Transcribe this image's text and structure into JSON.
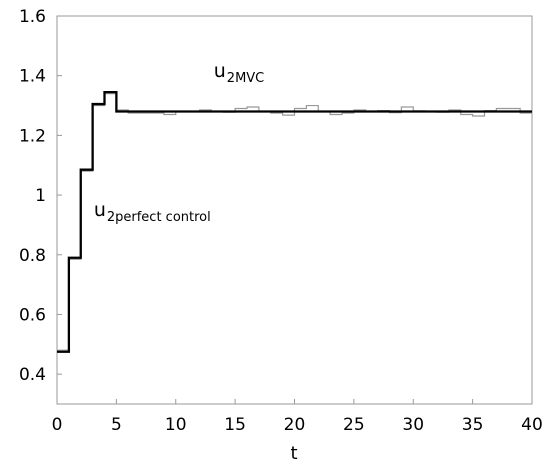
{
  "chart_data": {
    "type": "line",
    "xlabel": "t",
    "ylabel": "",
    "xlim": [
      0,
      40
    ],
    "ylim": [
      0.3,
      1.6
    ],
    "x_ticks": [
      "0",
      "5",
      "10",
      "15",
      "20",
      "25",
      "30",
      "35",
      "40"
    ],
    "y_ticks": [
      "0.4",
      "0.6",
      "0.8",
      "1",
      "1.2",
      "1.4",
      "1.6"
    ],
    "grid": false,
    "legend": "none",
    "series": [
      {
        "key": "perfect",
        "color": "#000000",
        "style": "step",
        "x": [
          0,
          1,
          2,
          3,
          4,
          5,
          6,
          7,
          8,
          9,
          10,
          11,
          12,
          13,
          14,
          15,
          16,
          17,
          18,
          19,
          20,
          21,
          22,
          23,
          24,
          25,
          26,
          27,
          28,
          29,
          30,
          31,
          32,
          33,
          34,
          35,
          36,
          37,
          38,
          39,
          40
        ],
        "y": [
          0.475,
          0.79,
          1.085,
          1.305,
          1.345,
          1.28,
          1.28,
          1.28,
          1.28,
          1.28,
          1.28,
          1.28,
          1.28,
          1.28,
          1.28,
          1.28,
          1.28,
          1.28,
          1.28,
          1.28,
          1.28,
          1.28,
          1.28,
          1.28,
          1.28,
          1.28,
          1.28,
          1.28,
          1.28,
          1.28,
          1.28,
          1.28,
          1.28,
          1.28,
          1.28,
          1.28,
          1.28,
          1.28,
          1.28,
          1.28,
          1.28
        ]
      },
      {
        "key": "mvc",
        "color": "#999999",
        "style": "step",
        "x": [
          0,
          1,
          2,
          3,
          4,
          5,
          6,
          7,
          8,
          9,
          10,
          11,
          12,
          13,
          14,
          15,
          16,
          17,
          18,
          19,
          20,
          21,
          22,
          23,
          24,
          25,
          26,
          27,
          28,
          29,
          30,
          31,
          32,
          33,
          34,
          35,
          36,
          37,
          38,
          39,
          40
        ],
        "y": [
          0.48,
          0.785,
          1.08,
          1.3,
          1.34,
          1.285,
          1.275,
          1.275,
          1.275,
          1.27,
          1.28,
          1.28,
          1.285,
          1.28,
          1.278,
          1.29,
          1.295,
          1.28,
          1.275,
          1.268,
          1.29,
          1.3,
          1.28,
          1.27,
          1.275,
          1.285,
          1.28,
          1.283,
          1.276,
          1.295,
          1.282,
          1.28,
          1.278,
          1.285,
          1.27,
          1.265,
          1.283,
          1.29,
          1.29,
          1.275,
          1.275
        ]
      }
    ],
    "annotations": [
      {
        "key": "mvc",
        "base": "u",
        "sub": "2MVC",
        "x": 13.2,
        "y": 1.395
      },
      {
        "key": "perfect",
        "base": "u",
        "sub": "2perfect control",
        "x": 3.1,
        "y": 0.93
      }
    ]
  }
}
